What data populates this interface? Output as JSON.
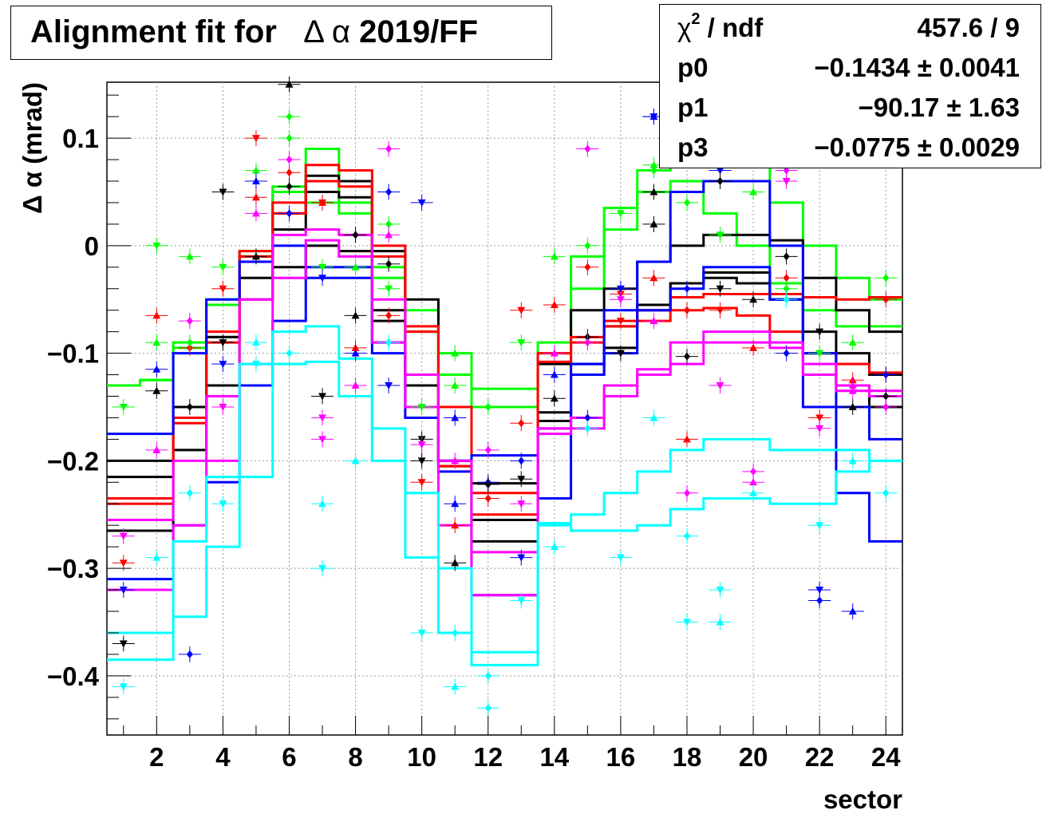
{
  "title": {
    "prefix": "Alignment fit for",
    "symbol": "Δ α",
    "suffix": "2019/FF"
  },
  "stats": {
    "chi2_label": "χ",
    "chi2_sup": "2",
    "chi2_suffix": " / ndf",
    "chi2_value": "457.6 / 9",
    "p0_label": "p0",
    "p0_value": "−0.1434 ± 0.0041",
    "p1_label": "p1",
    "p1_value": "−90.17 ± 1.63",
    "p3_label": "p3",
    "p3_value": "−0.0775 ± 0.0029"
  },
  "chart_data": {
    "type": "line",
    "title": "Alignment fit for Δ α 2019/FF",
    "xlabel": "sector",
    "ylabel": "Δ α (mrad)",
    "xlim": [
      0.5,
      24.5
    ],
    "ylim": [
      -0.455,
      0.152
    ],
    "x_ticks": [
      2,
      4,
      6,
      8,
      10,
      12,
      14,
      16,
      18,
      20,
      22,
      24
    ],
    "x_tick_labels": [
      "2",
      "4",
      "6",
      "8",
      "10",
      "12",
      "14",
      "16",
      "18",
      "20",
      "22",
      "24"
    ],
    "y_ticks": [
      0.1,
      0,
      -0.1,
      -0.2,
      -0.3,
      -0.4
    ],
    "y_tick_labels": [
      "0.1",
      "0",
      "−0.1",
      "−0.2",
      "−0.3",
      "−0.4"
    ],
    "grid": true,
    "colors": {
      "red": "#ff0000",
      "green": "#00ff00",
      "blue": "#0000ff",
      "black": "#000000",
      "magenta": "#ff00ff",
      "cyan": "#00ffff"
    },
    "series": [
      {
        "color": "green",
        "values": [
          -0.13,
          -0.125,
          -0.09,
          -0.05,
          -0.005,
          0.05,
          0.09,
          0.03,
          -0.03,
          -0.08,
          -0.12,
          -0.15,
          -0.15,
          -0.1,
          -0.04,
          0.015,
          0.05,
          0.06,
          0.03,
          0.0,
          -0.035,
          -0.06,
          -0.075,
          -0.075,
          -0.065,
          -0.065
        ]
      },
      {
        "color": "green",
        "values": [
          -0.13,
          -0.125,
          -0.095,
          -0.055,
          -0.01,
          0.055,
          0.04,
          0.04,
          -0.02,
          -0.06,
          -0.1,
          -0.133,
          -0.133,
          -0.09,
          -0.01,
          0.035,
          0.07,
          0.095,
          0.093,
          0.078,
          0.04,
          0.0,
          -0.03,
          -0.05,
          -0.06,
          -0.065
        ]
      },
      {
        "color": "black",
        "values": [
          -0.2,
          -0.2,
          -0.15,
          -0.085,
          -0.03,
          0.03,
          0.05,
          0.045,
          -0.005,
          -0.05,
          -0.2,
          -0.221,
          -0.221,
          -0.163,
          -0.12,
          -0.095,
          -0.06,
          -0.035,
          -0.025,
          -0.025,
          -0.05,
          -0.08,
          -0.1,
          -0.12,
          -0.168,
          -0.168
        ]
      },
      {
        "color": "black",
        "values": [
          -0.215,
          -0.215,
          -0.15,
          -0.085,
          -0.01,
          0.015,
          0.065,
          0.06,
          -0.06,
          -0.12,
          -0.2,
          -0.255,
          -0.255,
          -0.11,
          -0.06,
          -0.04,
          -0.015,
          0.0,
          0.01,
          0.01,
          0.005,
          -0.03,
          -0.06,
          -0.08,
          -0.085,
          -0.085
        ]
      },
      {
        "color": "black",
        "values": [
          -0.265,
          -0.265,
          -0.19,
          -0.13,
          -0.05,
          -0.02,
          0.0,
          -0.005,
          -0.07,
          -0.13,
          -0.205,
          -0.275,
          -0.275,
          -0.155,
          -0.11,
          -0.075,
          -0.055,
          -0.035,
          -0.03,
          -0.035,
          -0.05,
          -0.1,
          -0.13,
          -0.15,
          -0.15,
          -0.15
        ]
      },
      {
        "color": "red",
        "values": [
          -0.235,
          -0.235,
          -0.16,
          -0.08,
          -0.005,
          0.04,
          0.075,
          0.07,
          0.0,
          -0.075,
          -0.15,
          -0.25,
          -0.25,
          -0.1,
          -0.085,
          -0.07,
          -0.06,
          -0.048,
          -0.045,
          -0.045,
          -0.045,
          -0.048,
          -0.05,
          -0.048,
          -0.046,
          -0.046
        ]
      },
      {
        "color": "red",
        "values": [
          -0.24,
          -0.24,
          -0.165,
          -0.09,
          -0.01,
          0.03,
          0.06,
          0.055,
          -0.01,
          -0.08,
          -0.205,
          -0.23,
          -0.23,
          -0.108,
          -0.09,
          -0.075,
          -0.07,
          -0.06,
          -0.058,
          -0.065,
          -0.08,
          -0.1,
          -0.11,
          -0.118,
          -0.12,
          -0.12
        ]
      },
      {
        "color": "blue",
        "values": [
          -0.175,
          -0.175,
          -0.1,
          -0.05,
          -0.015,
          0.0,
          -0.03,
          -0.03,
          -0.1,
          -0.16,
          -0.2,
          -0.195,
          -0.195,
          -0.235,
          -0.11,
          -0.06,
          -0.015,
          0.05,
          0.06,
          0.06,
          0.0,
          -0.15,
          -0.23,
          -0.275,
          -0.278,
          -0.278
        ]
      },
      {
        "color": "blue",
        "values": [
          -0.31,
          -0.31,
          -0.26,
          -0.22,
          -0.13,
          -0.07,
          -0.02,
          -0.02,
          -0.09,
          -0.15,
          -0.21,
          -0.325,
          -0.325,
          -0.17,
          -0.12,
          -0.1,
          -0.06,
          -0.04,
          -0.02,
          -0.02,
          -0.05,
          -0.1,
          -0.15,
          -0.18,
          -0.21,
          -0.21
        ]
      },
      {
        "color": "magenta",
        "values": [
          -0.255,
          -0.255,
          -0.2,
          -0.14,
          -0.05,
          0.01,
          0.015,
          0.01,
          -0.05,
          -0.12,
          -0.2,
          -0.285,
          -0.285,
          -0.17,
          -0.17,
          -0.14,
          -0.12,
          -0.11,
          -0.09,
          -0.09,
          -0.09,
          -0.11,
          -0.13,
          -0.135,
          -0.155,
          -0.155
        ]
      },
      {
        "color": "magenta",
        "values": [
          -0.32,
          -0.32,
          -0.26,
          -0.2,
          -0.11,
          -0.03,
          0.005,
          -0.01,
          -0.09,
          -0.15,
          -0.26,
          -0.325,
          -0.325,
          -0.175,
          -0.16,
          -0.13,
          -0.115,
          -0.09,
          -0.08,
          -0.08,
          -0.095,
          -0.12,
          -0.135,
          -0.14,
          -0.16,
          -0.16
        ]
      },
      {
        "color": "cyan",
        "values": [
          -0.36,
          -0.36,
          -0.275,
          -0.215,
          -0.11,
          -0.08,
          -0.075,
          -0.105,
          -0.17,
          -0.23,
          -0.3,
          -0.378,
          -0.378,
          -0.258,
          -0.265,
          -0.265,
          -0.26,
          -0.245,
          -0.235,
          -0.235,
          -0.24,
          -0.24,
          -0.21,
          -0.2,
          -0.2,
          -0.2
        ]
      },
      {
        "color": "cyan",
        "values": [
          -0.385,
          -0.385,
          -0.345,
          -0.28,
          -0.215,
          -0.11,
          -0.108,
          -0.14,
          -0.2,
          -0.29,
          -0.36,
          -0.39,
          -0.39,
          -0.26,
          -0.25,
          -0.23,
          -0.21,
          -0.19,
          -0.18,
          -0.18,
          -0.19,
          -0.19,
          -0.19,
          -0.2,
          -0.22,
          -0.22
        ]
      }
    ],
    "points": {
      "red": [
        [
          1,
          -0.295
        ],
        [
          2,
          -0.065
        ],
        [
          3,
          -0.095
        ],
        [
          4,
          -0.04
        ],
        [
          5,
          0.045
        ],
        [
          6,
          0.068
        ],
        [
          7,
          0.04
        ],
        [
          8,
          -0.095
        ],
        [
          9,
          -0.065
        ],
        [
          10,
          -0.22
        ],
        [
          11,
          -0.26
        ],
        [
          12,
          -0.235
        ],
        [
          13,
          -0.06
        ],
        [
          14,
          -0.055
        ],
        [
          15,
          -0.02
        ],
        [
          16,
          -0.045
        ],
        [
          17,
          -0.03
        ],
        [
          18,
          -0.06
        ],
        [
          19,
          -0.06
        ],
        [
          20,
          -0.095
        ],
        [
          21,
          -0.03
        ],
        [
          22,
          -0.16
        ],
        [
          23,
          -0.125
        ],
        [
          24,
          -0.12
        ],
        [
          5,
          0.1
        ],
        [
          7,
          0.04
        ],
        [
          13,
          -0.165
        ],
        [
          16,
          -0.07
        ],
        [
          18,
          -0.18
        ],
        [
          24,
          -0.05
        ]
      ],
      "green": [
        [
          1,
          -0.15
        ],
        [
          2,
          -0.09
        ],
        [
          3,
          -0.09
        ],
        [
          4,
          -0.02
        ],
        [
          5,
          0.07
        ],
        [
          6,
          0.12
        ],
        [
          7,
          -0.02
        ],
        [
          8,
          -0.02
        ],
        [
          9,
          0.02
        ],
        [
          10,
          -0.15
        ],
        [
          11,
          -0.1
        ],
        [
          12,
          -0.15
        ],
        [
          13,
          -0.09
        ],
        [
          14,
          -0.01
        ],
        [
          15,
          0.0
        ],
        [
          16,
          0.03
        ],
        [
          17,
          0.075
        ],
        [
          18,
          0.04
        ],
        [
          19,
          0.01
        ],
        [
          20,
          0.05
        ],
        [
          21,
          -0.04
        ],
        [
          22,
          -0.1
        ],
        [
          23,
          -0.09
        ],
        [
          24,
          -0.03
        ],
        [
          2,
          0.0
        ],
        [
          3,
          -0.01
        ],
        [
          6,
          0.1
        ],
        [
          9,
          -0.04
        ],
        [
          11,
          -0.13
        ],
        [
          17,
          0.07
        ]
      ],
      "blue": [
        [
          1,
          -0.32
        ],
        [
          2,
          -0.115
        ],
        [
          3,
          -0.38
        ],
        [
          4,
          -0.11
        ],
        [
          5,
          0.06
        ],
        [
          6,
          0.03
        ],
        [
          7,
          -0.03
        ],
        [
          8,
          -0.1
        ],
        [
          9,
          0.05
        ],
        [
          10,
          0.04
        ],
        [
          11,
          -0.16
        ],
        [
          12,
          -0.22
        ],
        [
          13,
          -0.29
        ],
        [
          14,
          -0.12
        ],
        [
          15,
          -0.16
        ],
        [
          16,
          -0.04
        ],
        [
          17,
          0.12
        ],
        [
          18,
          -0.04
        ],
        [
          19,
          0.07
        ],
        [
          20,
          0.11
        ],
        [
          21,
          -0.1
        ],
        [
          22,
          -0.32
        ],
        [
          23,
          -0.34
        ],
        [
          24,
          -0.12
        ],
        [
          9,
          -0.13
        ],
        [
          11,
          -0.24
        ],
        [
          13,
          -0.2
        ],
        [
          17,
          0.12
        ],
        [
          19,
          0.08
        ],
        [
          22,
          -0.33
        ]
      ],
      "black": [
        [
          1,
          -0.37
        ],
        [
          2,
          -0.135
        ],
        [
          3,
          -0.15
        ],
        [
          4,
          -0.09
        ],
        [
          5,
          -0.01
        ],
        [
          6,
          0.055
        ],
        [
          7,
          -0.14
        ],
        [
          8,
          -0.065
        ],
        [
          9,
          -0.017
        ],
        [
          10,
          -0.18
        ],
        [
          11,
          -0.295
        ],
        [
          12,
          -0.222
        ],
        [
          13,
          -0.217
        ],
        [
          14,
          -0.142
        ],
        [
          15,
          -0.085
        ],
        [
          16,
          -0.1
        ],
        [
          17,
          0.02
        ],
        [
          18,
          -0.103
        ],
        [
          19,
          -0.04
        ],
        [
          20,
          -0.05
        ],
        [
          21,
          -0.01
        ],
        [
          22,
          -0.08
        ],
        [
          23,
          -0.15
        ],
        [
          24,
          -0.14
        ],
        [
          4,
          0.05
        ],
        [
          6,
          0.15
        ],
        [
          8,
          0.01
        ],
        [
          10,
          -0.2
        ],
        [
          17,
          0.05
        ],
        [
          19,
          0.06
        ]
      ],
      "magenta": [
        [
          1,
          -0.27
        ],
        [
          2,
          -0.19
        ],
        [
          3,
          -0.07
        ],
        [
          4,
          -0.15
        ],
        [
          5,
          0.03
        ],
        [
          6,
          0.08
        ],
        [
          7,
          -0.16
        ],
        [
          8,
          -0.13
        ],
        [
          9,
          0.09
        ],
        [
          10,
          -0.185
        ],
        [
          11,
          -0.2
        ],
        [
          12,
          -0.19
        ],
        [
          13,
          -0.24
        ],
        [
          14,
          -0.1
        ],
        [
          15,
          0.09
        ],
        [
          16,
          -0.05
        ],
        [
          17,
          -0.07
        ],
        [
          18,
          -0.23
        ],
        [
          19,
          -0.13
        ],
        [
          20,
          -0.22
        ],
        [
          21,
          0.07
        ],
        [
          22,
          -0.17
        ],
        [
          23,
          -0.13
        ],
        [
          24,
          -0.15
        ],
        [
          7,
          -0.18
        ],
        [
          9,
          0.01
        ],
        [
          15,
          -0.09
        ],
        [
          21,
          0.06
        ],
        [
          23,
          -0.135
        ],
        [
          20,
          -0.21
        ]
      ],
      "cyan": [
        [
          1,
          -0.41
        ],
        [
          2,
          -0.29
        ],
        [
          3,
          -0.23
        ],
        [
          4,
          -0.24
        ],
        [
          5,
          -0.09
        ],
        [
          6,
          -0.1
        ],
        [
          7,
          -0.3
        ],
        [
          8,
          -0.2
        ],
        [
          9,
          -0.09
        ],
        [
          10,
          -0.36
        ],
        [
          11,
          -0.41
        ],
        [
          12,
          -0.43
        ],
        [
          13,
          -0.33
        ],
        [
          14,
          -0.28
        ],
        [
          15,
          -0.17
        ],
        [
          16,
          -0.29
        ],
        [
          17,
          -0.16
        ],
        [
          18,
          -0.27
        ],
        [
          19,
          -0.32
        ],
        [
          20,
          -0.23
        ],
        [
          21,
          -0.05
        ],
        [
          22,
          -0.26
        ],
        [
          23,
          -0.2
        ],
        [
          24,
          -0.23
        ],
        [
          5,
          -0.11
        ],
        [
          7,
          -0.24
        ],
        [
          11,
          -0.36
        ],
        [
          18,
          -0.35
        ],
        [
          19,
          -0.35
        ],
        [
          12,
          -0.4
        ]
      ]
    }
  }
}
